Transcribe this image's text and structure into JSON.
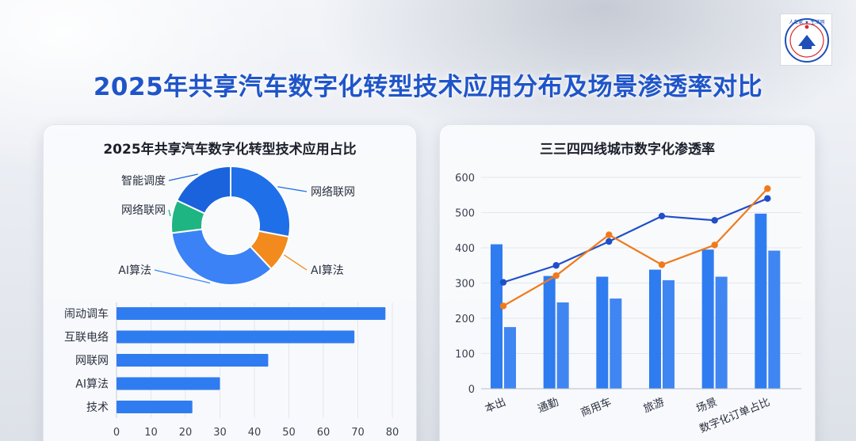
{
  "title": "2025年共享汽车数字化转型技术应用分布及场景渗透率对比",
  "logo": {
    "text": "人车家 ★ 生活网",
    "colors": [
      "#1f4fb8",
      "#d62b2b"
    ]
  },
  "colors": {
    "title": "#1f55c9",
    "pie": [
      "#1f6fe8",
      "#f28a1d",
      "#3b82f6",
      "#1fb583",
      "#1a63dd"
    ],
    "bar": "#2f7cf0",
    "line_blue": "#1f4fc9",
    "line_orange": "#f07a1a",
    "bar_right_a": "#2f7cf0",
    "bar_right_b": "#3f86f2"
  },
  "left_panel": {
    "title": "2025年共享汽车数字化转型技术应用占比"
  },
  "right_panel": {
    "title": "三三四四线城市数字化渗透率"
  },
  "chart_data": [
    {
      "type": "pie",
      "variant": "donut",
      "labels": [
        "网络联网",
        "AI算法",
        "AI算法",
        "网络联网",
        "智能调度"
      ],
      "values": [
        28,
        10,
        35,
        9,
        18
      ]
    },
    {
      "type": "bar",
      "orientation": "horizontal",
      "categories": [
        "闹动调车",
        "互联电络",
        "网联网",
        "AI算法",
        "技术"
      ],
      "values": [
        78,
        69,
        44,
        30,
        22
      ],
      "xlim": [
        0,
        80
      ],
      "xticks": [
        0,
        10,
        20,
        30,
        40,
        50,
        60,
        70,
        80
      ],
      "grid": true
    },
    {
      "type": "bar",
      "variant": "grouped bars with line overlays",
      "categories": [
        "本出",
        "通勤",
        "商用车",
        "旅游",
        "场景",
        "数字化订单占比"
      ],
      "series": [
        {
          "kind": "bar",
          "values": [
            410,
            320,
            318,
            338,
            395,
            497
          ]
        },
        {
          "kind": "bar",
          "values": [
            175,
            245,
            256,
            308,
            318,
            392
          ]
        },
        {
          "kind": "line",
          "values": [
            302,
            350,
            418,
            490,
            478,
            540
          ]
        },
        {
          "kind": "line",
          "values": [
            235,
            321,
            437,
            352,
            408,
            568
          ]
        }
      ],
      "ylim": [
        0,
        600
      ],
      "yticks": [
        0,
        100,
        200,
        300,
        400,
        500,
        600
      ],
      "grid": true
    }
  ]
}
